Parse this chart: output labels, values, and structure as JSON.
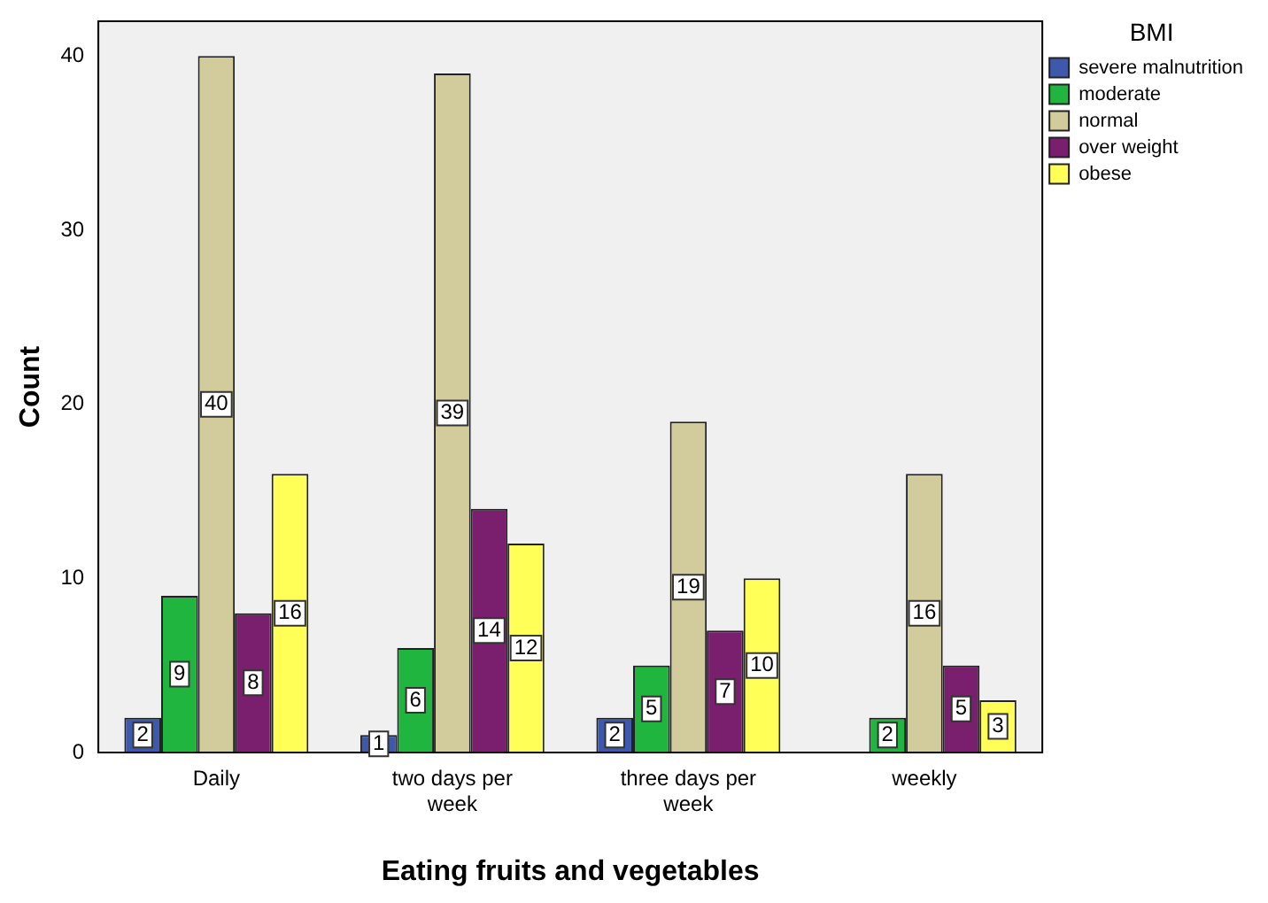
{
  "chart_data": {
    "type": "bar",
    "xlabel": "Eating fruits and vegetables",
    "ylabel": "Count",
    "legend_title": "BMI",
    "legend": "top right",
    "categories": [
      "Daily",
      "two days per week",
      "three days per week",
      "weekly"
    ],
    "series": [
      {
        "name": "severe malnutrition",
        "color": "#3e58ac",
        "values": [
          2,
          1,
          2,
          null
        ]
      },
      {
        "name": "moderate",
        "color": "#1fb53e",
        "values": [
          9,
          6,
          5,
          2
        ]
      },
      {
        "name": "normal",
        "color": "#d2cc9c",
        "values": [
          40,
          39,
          19,
          16
        ]
      },
      {
        "name": "over weight",
        "color": "#7a1f6e",
        "values": [
          8,
          14,
          7,
          5
        ]
      },
      {
        "name": "obese",
        "color": "#ffff57",
        "values": [
          16,
          12,
          10,
          3
        ]
      }
    ],
    "ylim": [
      0,
      42
    ],
    "yticks": [
      0,
      10,
      20,
      30,
      40
    ],
    "grid": false,
    "data_labels": true
  }
}
